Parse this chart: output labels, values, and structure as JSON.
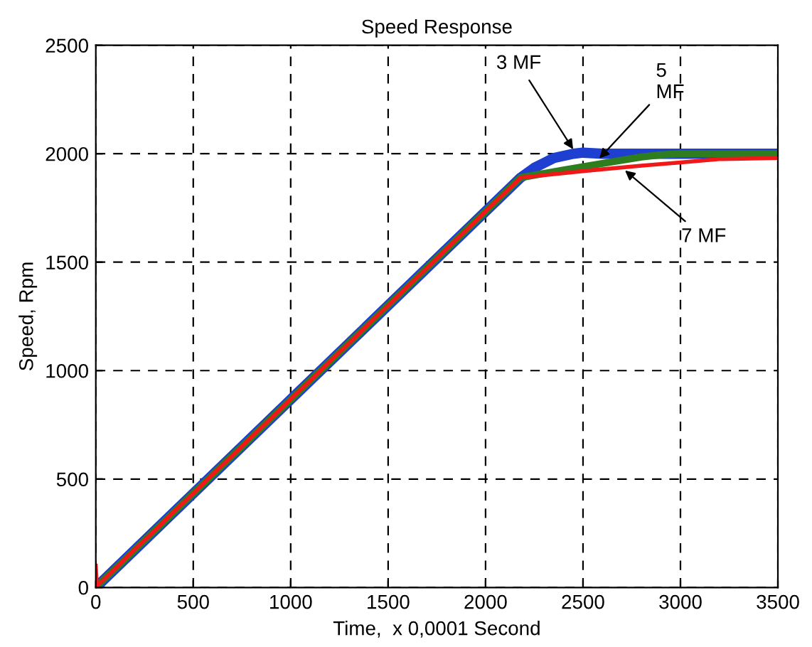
{
  "chart_data": {
    "type": "line",
    "title": "Speed Response",
    "xlabel": "Time,  x 0,0001 Second",
    "ylabel": "Speed, Rpm",
    "xlim": [
      0,
      3500
    ],
    "ylim": [
      0,
      2500
    ],
    "xticks": [
      0,
      500,
      1000,
      1500,
      2000,
      2500,
      3000,
      3500
    ],
    "yticks": [
      0,
      500,
      1000,
      1500,
      2000,
      2500
    ],
    "grid": true,
    "line_style": "solid",
    "series": [
      {
        "color": "#1f3fd0",
        "x": [
          0,
          2180,
          2250,
          2350,
          2450,
          2500,
          2600,
          2800,
          3000,
          3500
        ],
        "values": [
          0,
          1890,
          1935,
          1980,
          2000,
          2005,
          2000,
          2000,
          2000,
          2000
        ]
      },
      {
        "color": "#2e7d1e",
        "x": [
          0,
          2180,
          2400,
          2600,
          2800,
          2900,
          3000,
          3500
        ],
        "values": [
          0,
          1890,
          1925,
          1955,
          1985,
          1995,
          2000,
          2000
        ]
      },
      {
        "color": "#f01818",
        "x": [
          0,
          5,
          10,
          2180,
          2500,
          2800,
          3000,
          3200,
          3500
        ],
        "values": [
          100,
          10,
          10,
          1890,
          1920,
          1945,
          1960,
          1975,
          1980
        ]
      }
    ],
    "annotations": [
      {
        "text": "3 MF",
        "x": 2460,
        "y": 2005
      },
      {
        "text": "5\nMF",
        "x": 2570,
        "y": 1965
      },
      {
        "text": "7 MF",
        "x": 2700,
        "y": 1935
      }
    ]
  }
}
